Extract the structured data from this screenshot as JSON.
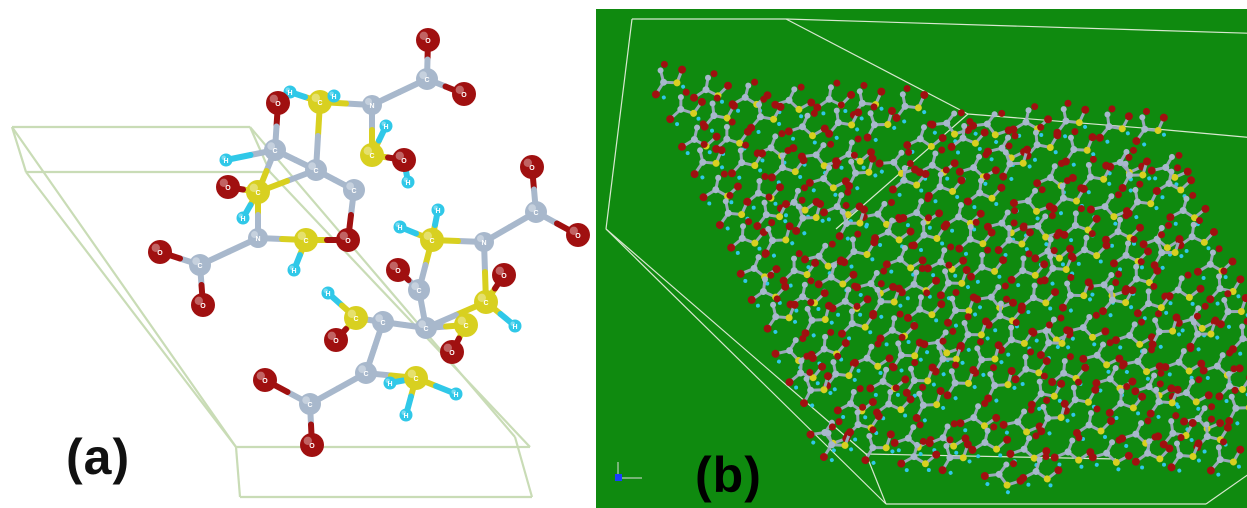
{
  "panels": {
    "a": {
      "label": "(a)"
    },
    "b": {
      "label": "(b)"
    }
  },
  "atom_letters": {
    "carbon": "C",
    "nitrogen": "N",
    "oxygen": "O",
    "hydrogen": "H"
  },
  "colors": {
    "panel_b_background": "#0f8a0f",
    "unit_cell_a": "#c9dcb6",
    "unit_cell_b": "#d8e8d0",
    "carbon": "#a8b8cc",
    "sulfur": "#d8d020",
    "oxygen": "#a01010",
    "hydrogen": "#30c8e8"
  }
}
